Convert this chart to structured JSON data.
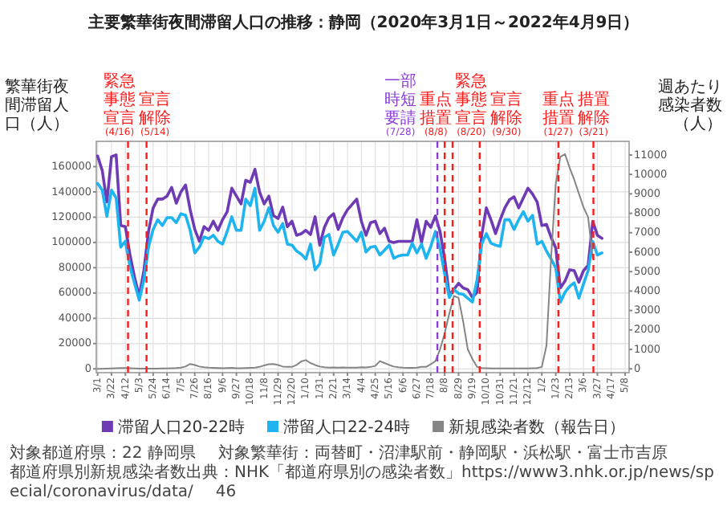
{
  "chart_data": {
    "type": "line",
    "title": "主要繁華街夜間滞留人口の推移：静岡（2020年3月1日～2022年4月9日）",
    "ylabel": "繁華街夜間滞留人口（人）",
    "y2label": "週あたり感染者数（人）",
    "annotations": [
      "対象都道府県：22 静岡県",
      "対象繁華街：両替町・沼津駅前・静岡駅・浜松駅・富士市吉原",
      "都道府県別新規感染者数出典：NHK「都道府県別の感染者数」https://www3.nhk.or.jp/news/special/coronavirus/data/",
      "46"
    ],
    "x": [
      "2020-03-01",
      "2020-03-08",
      "2020-03-15",
      "2020-03-22",
      "2020-03-29",
      "2020-04-05",
      "2020-04-12",
      "2020-04-19",
      "2020-04-26",
      "2020-05-03",
      "2020-05-10",
      "2020-05-17",
      "2020-05-24",
      "2020-05-31",
      "2020-06-07",
      "2020-06-14",
      "2020-06-21",
      "2020-06-28",
      "2020-07-05",
      "2020-07-12",
      "2020-07-19",
      "2020-07-26",
      "2020-08-02",
      "2020-08-09",
      "2020-08-16",
      "2020-08-23",
      "2020-08-30",
      "2020-09-06",
      "2020-09-13",
      "2020-09-20",
      "2020-09-27",
      "2020-10-04",
      "2020-10-11",
      "2020-10-18",
      "2020-10-25",
      "2020-11-01",
      "2020-11-08",
      "2020-11-15",
      "2020-11-22",
      "2020-11-29",
      "2020-12-06",
      "2020-12-13",
      "2020-12-20",
      "2020-12-27",
      "2021-01-03",
      "2021-01-10",
      "2021-01-17",
      "2021-01-24",
      "2021-01-31",
      "2021-02-07",
      "2021-02-14",
      "2021-02-21",
      "2021-02-28",
      "2021-03-07",
      "2021-03-14",
      "2021-03-28",
      "2021-04-04",
      "2021-04-11",
      "2021-04-18",
      "2021-04-25",
      "2021-05-02",
      "2021-05-09",
      "2021-05-16",
      "2021-05-23",
      "2021-05-30",
      "2021-06-06",
      "2021-06-13",
      "2021-06-20",
      "2021-06-27",
      "2021-07-04",
      "2021-07-11",
      "2021-07-18",
      "2021-07-25",
      "2021-08-01",
      "2021-08-08",
      "2021-08-15",
      "2021-08-22",
      "2021-08-29",
      "2021-09-05",
      "2021-09-12",
      "2021-09-19",
      "2021-09-26",
      "2021-10-03",
      "2021-10-10",
      "2021-10-17",
      "2021-10-24",
      "2021-10-31",
      "2021-11-07",
      "2021-11-14",
      "2021-11-21",
      "2021-11-28",
      "2021-12-05",
      "2021-12-12",
      "2021-12-19",
      "2021-12-26",
      "2022-01-02",
      "2022-01-09",
      "2022-01-16",
      "2022-01-23",
      "2022-01-30",
      "2022-02-06",
      "2022-02-13",
      "2022-02-20",
      "2022-02-27",
      "2022-03-06",
      "2022-03-13",
      "2022-03-20",
      "2022-03-27",
      "2022-04-03"
    ],
    "series": [
      {
        "name": "滞留人口20-22時",
        "color": "#6f3bb5",
        "values": [
          168400,
          156900,
          132000,
          167800,
          169300,
          113400,
          112500,
          90100,
          72100,
          57400,
          77700,
          108700,
          127400,
          134300,
          134300,
          136700,
          143600,
          131100,
          139900,
          145500,
          125900,
          110300,
          101000,
          112500,
          109600,
          116800,
          109600,
          118000,
          124300,
          142900,
          136700,
          130500,
          149200,
          147600,
          157900,
          139900,
          130500,
          136700,
          121200,
          119000,
          128000,
          112500,
          116800,
          105700,
          106900,
          109600,
          106300,
          120300,
          97900,
          111900,
          119600,
          122700,
          110300,
          119600,
          125900,
          134300,
          116800,
          105700,
          115700,
          116800,
          107000,
          111300,
          100900,
          100000,
          100900,
          100900,
          100900,
          100900,
          118000,
          100000,
          116800,
          111900,
          121000,
          108700,
          86900,
          58400,
          62800,
          67700,
          64000,
          62700,
          56500,
          60600,
          105700,
          127400,
          118000,
          107000,
          118000,
          127400,
          133700,
          136100,
          127400,
          135200,
          142900,
          138300,
          132000,
          113400,
          114300,
          104100,
          95700,
          64000,
          69400,
          78400,
          77700,
          68500,
          77700,
          81800,
          116800,
          105700,
          103300
        ]
      },
      {
        "name": "滞留人口22-24時",
        "color": "#1eb4ef",
        "values": [
          146700,
          141400,
          120600,
          141400,
          135200,
          96300,
          100900,
          80700,
          67300,
          54400,
          70400,
          96300,
          110300,
          118000,
          113400,
          119600,
          119600,
          115700,
          122700,
          121600,
          109600,
          91700,
          96300,
          104400,
          103000,
          105700,
          100900,
          98700,
          108700,
          120300,
          109600,
          109600,
          134300,
          129100,
          142900,
          109600,
          116800,
          127400,
          113400,
          108100,
          115000,
          98700,
          97900,
          93200,
          90800,
          86900,
          98700,
          78400,
          83100,
          104100,
          106300,
          90100,
          98700,
          108100,
          108700,
          100900,
          108100,
          92400,
          96300,
          96900,
          90100,
          93900,
          97900,
          87500,
          89300,
          90100,
          90100,
          99400,
          91700,
          98700,
          87500,
          96900,
          108700,
          94900,
          75100,
          56500,
          62700,
          59600,
          59000,
          55900,
          52800,
          70400,
          98700,
          107000,
          99400,
          97900,
          96900,
          118000,
          118000,
          110300,
          118000,
          124300,
          116800,
          121500,
          98700,
          100900,
          93200,
          86900,
          80000,
          52800,
          60600,
          65300,
          68000,
          55900,
          67100,
          77700,
          100900,
          90100,
          91700
        ]
      },
      {
        "name": "新規感染者数（報告日）",
        "color": "#858585",
        "axis": "y2",
        "values": [
          0,
          0,
          10,
          20,
          30,
          40,
          40,
          30,
          20,
          10,
          10,
          10,
          10,
          10,
          20,
          20,
          30,
          40,
          60,
          120,
          250,
          200,
          120,
          80,
          60,
          50,
          40,
          30,
          40,
          50,
          30,
          30,
          40,
          50,
          60,
          100,
          180,
          240,
          250,
          200,
          120,
          100,
          100,
          200,
          380,
          450,
          300,
          200,
          120,
          80,
          60,
          70,
          60,
          70,
          60,
          60,
          80,
          70,
          100,
          150,
          400,
          300,
          200,
          120,
          80,
          60,
          50,
          50,
          60,
          100,
          100,
          240,
          400,
          1000,
          1820,
          2840,
          3750,
          3650,
          2430,
          1000,
          510,
          100,
          40,
          30,
          20,
          20,
          20,
          20,
          20,
          20,
          20,
          20,
          20,
          30,
          40,
          100,
          1200,
          5700,
          9500,
          10900,
          11050,
          10340,
          9730,
          9020,
          8310,
          7800,
          5680,
          null,
          null
        ]
      }
    ],
    "xlim": [
      "2020-02-28",
      "2022-05-14"
    ],
    "xticks": [
      {
        "value": "2020-03-01",
        "label": "3/1"
      },
      {
        "value": "2020-03-22",
        "label": "3/22"
      },
      {
        "value": "2020-04-12",
        "label": "4/12"
      },
      {
        "value": "2020-05-03",
        "label": "5/3"
      },
      {
        "value": "2020-05-24",
        "label": "5/24"
      },
      {
        "value": "2020-06-14",
        "label": "6/14"
      },
      {
        "value": "2020-07-05",
        "label": "7/5"
      },
      {
        "value": "2020-07-26",
        "label": "7/26"
      },
      {
        "value": "2020-08-16",
        "label": "8/16"
      },
      {
        "value": "2020-09-06",
        "label": "9/6"
      },
      {
        "value": "2020-09-27",
        "label": "9/27"
      },
      {
        "value": "2020-10-18",
        "label": "10/18"
      },
      {
        "value": "2020-11-08",
        "label": "11/8"
      },
      {
        "value": "2020-11-29",
        "label": "11/29"
      },
      {
        "value": "2020-12-20",
        "label": "12/20"
      },
      {
        "value": "2021-01-10",
        "label": "1/10"
      },
      {
        "value": "2021-01-31",
        "label": "1/31"
      },
      {
        "value": "2021-02-21",
        "label": "2/21"
      },
      {
        "value": "2021-03-14",
        "label": "3/14"
      },
      {
        "value": "2021-04-04",
        "label": "4/4"
      },
      {
        "value": "2021-04-25",
        "label": "4/25"
      },
      {
        "value": "2021-05-16",
        "label": "5/16"
      },
      {
        "value": "2021-06-06",
        "label": "6/6"
      },
      {
        "value": "2021-06-27",
        "label": "6/27"
      },
      {
        "value": "2021-07-18",
        "label": "7/18"
      },
      {
        "value": "2021-08-08",
        "label": "8/8"
      },
      {
        "value": "2021-08-29",
        "label": "8/29"
      },
      {
        "value": "2021-09-19",
        "label": "9/19"
      },
      {
        "value": "2021-10-10",
        "label": "10/10"
      },
      {
        "value": "2021-10-31",
        "label": "10/31"
      },
      {
        "value": "2021-11-21",
        "label": "11/21"
      },
      {
        "value": "2021-12-12",
        "label": "12/12"
      },
      {
        "value": "2022-01-02",
        "label": "1/2"
      },
      {
        "value": "2022-01-23",
        "label": "1/23"
      },
      {
        "value": "2022-02-13",
        "label": "2/13"
      },
      {
        "value": "2022-03-06",
        "label": "3/6"
      },
      {
        "value": "2022-03-27",
        "label": "3/27"
      },
      {
        "value": "2022-04-17",
        "label": "4/17"
      },
      {
        "value": "2022-05-08",
        "label": "5/8"
      }
    ],
    "ylim": [
      -3000,
      180000
    ],
    "yticks": [
      0,
      20000,
      40000,
      60000,
      80000,
      100000,
      120000,
      140000,
      160000
    ],
    "y2lim": [
      -195,
      11700
    ],
    "y2ticks": [
      0,
      1000,
      2000,
      3000,
      4000,
      5000,
      6000,
      7000,
      8000,
      9000,
      10000,
      11000
    ],
    "ref_lines": [
      {
        "axis": "x",
        "value": "2020-04-16",
        "label": "緊急事態宣言(4/16)",
        "color": "#ff1a1a",
        "line_style": "dashed"
      },
      {
        "axis": "x",
        "value": "2020-05-14",
        "label": "宣言解除(5/14)",
        "color": "#ff1a1a",
        "line_style": "dashed"
      },
      {
        "axis": "x",
        "value": "2021-07-28",
        "label": "一部時短要請(7/28)",
        "color": "#8b3fd6",
        "line_style": "dashed"
      },
      {
        "axis": "x",
        "value": "2021-08-08",
        "label": "重点措置(8/8)",
        "color": "#ff1a1a",
        "line_style": "dashed"
      },
      {
        "axis": "x",
        "value": "2021-08-20",
        "label": "緊急事態宣言(8/20)",
        "color": "#ff1a1a",
        "line_style": "dashed"
      },
      {
        "axis": "x",
        "value": "2021-09-30",
        "label": "宣言解除(9/30)",
        "color": "#ff1a1a",
        "line_style": "dashed"
      },
      {
        "axis": "x",
        "value": "2022-01-27",
        "label": "重点措置(1/27)",
        "color": "#ff1a1a",
        "line_style": "dashed"
      },
      {
        "axis": "x",
        "value": "2022-03-21",
        "label": "措置解除(3/21)",
        "color": "#ff1a1a",
        "line_style": "dashed"
      }
    ],
    "grid": true,
    "legend": "bottom"
  }
}
